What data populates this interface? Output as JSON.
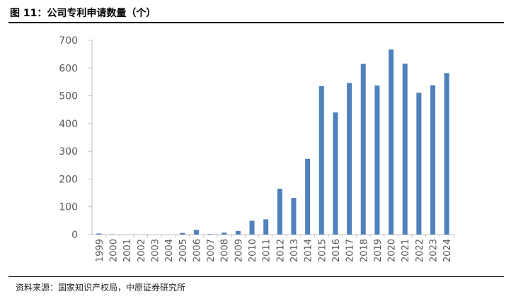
{
  "header": {
    "title": "图 11：公司专利申请数量（个）"
  },
  "footer": {
    "source": "资料来源：国家知识产权局，中原证券研究所"
  },
  "colors": {
    "bar": "#4F81BD",
    "axis": "#BFBFBF",
    "text": "#595959"
  },
  "chart_data": {
    "type": "bar",
    "title": "",
    "xlabel": "",
    "ylabel": "",
    "categories": [
      "1999",
      "2000",
      "2001",
      "2002",
      "2003",
      "2004",
      "2005",
      "2006",
      "2007",
      "2008",
      "2009",
      "2010",
      "2011",
      "2012",
      "2013",
      "2014",
      "2015",
      "2016",
      "2017",
      "2018",
      "2019",
      "2020",
      "2021",
      "2022",
      "2023",
      "2024"
    ],
    "values": [
      4,
      1,
      0,
      0,
      0,
      0,
      6,
      17,
      2,
      7,
      13,
      50,
      55,
      165,
      132,
      273,
      535,
      440,
      546,
      615,
      537,
      667,
      616,
      511,
      538,
      582
    ],
    "ylim": [
      0,
      700
    ],
    "yticks": [
      0,
      100,
      200,
      300,
      400,
      500,
      600,
      700
    ],
    "grid": false,
    "legend": "none"
  }
}
